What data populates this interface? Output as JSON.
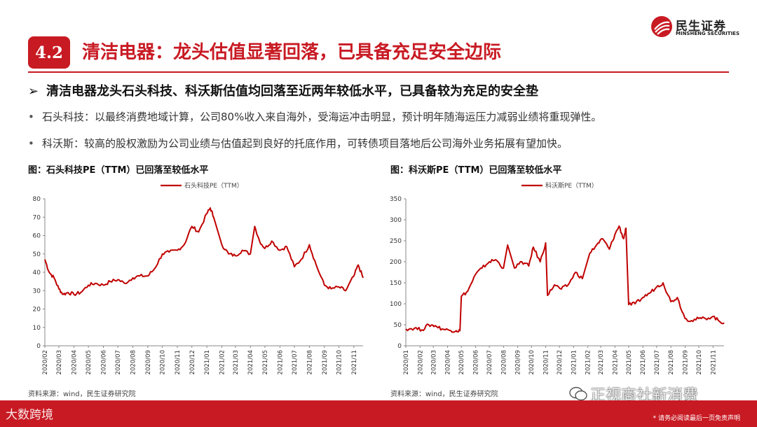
{
  "brand": {
    "name_cn": "民生证券",
    "name_en": "MINSHENG SECURITIES",
    "color": "#c81a23"
  },
  "section": {
    "number": "4.2",
    "title": "清洁电器：龙头估值显著回落，已具备充足安全边际"
  },
  "key_point": {
    "icon": "arrow-bullet-icon",
    "text": "清洁电器龙头石头科技、科沃斯估值均回落至近两年较低水平，已具备较为充足的安全垫"
  },
  "bullets": [
    "石头科技：以最终消费地域计算，公司80%收入来自海外，受海运冲击明显，预计明年随海运压力减弱业绩将重现弹性。",
    "科沃斯：较高的股权激励为公司业绩与估值起到良好的托底作用，可转债项目落地后公司海外业务拓展有望加快。"
  ],
  "figures": [
    {
      "caption": "图：石头科技PE（TTM）已回落至较低水平",
      "source": "资料来源：wind，民生证券研究院"
    },
    {
      "caption": "图：科沃斯PE（TTM）已回落至较低水平",
      "source": "资料来源：wind，民生证券研究院"
    }
  ],
  "chart_data": [
    {
      "type": "line",
      "title": "",
      "xlabel": "",
      "ylabel": "",
      "ylim": [
        0,
        80
      ],
      "yticks": [
        0,
        10,
        20,
        30,
        40,
        50,
        60,
        70,
        80
      ],
      "grid": false,
      "legend_position": "top-center",
      "x_tick_labels": [
        "2020/02",
        "2020/03",
        "2020/04",
        "2020/05",
        "2020/06",
        "2020/07",
        "2020/08",
        "2020/09",
        "2020/10",
        "2020/11",
        "2020/12",
        "2021/01",
        "2021/02",
        "2021/03",
        "2021/04",
        "2021/05",
        "2021/06",
        "2021/07",
        "2021/08",
        "2021/09",
        "2021/10",
        "2021/11"
      ],
      "series": [
        {
          "name": "石头科技PE（TTM）",
          "color": "#c00000",
          "x": [
            "2020-02-01",
            "2020-02-10",
            "2020-02-20",
            "2020-03-01",
            "2020-03-10",
            "2020-03-20",
            "2020-04-01",
            "2020-04-15",
            "2020-05-01",
            "2020-05-15",
            "2020-06-01",
            "2020-06-15",
            "2020-07-01",
            "2020-07-15",
            "2020-08-01",
            "2020-08-15",
            "2020-09-01",
            "2020-09-15",
            "2020-10-01",
            "2020-10-15",
            "2020-11-01",
            "2020-11-15",
            "2020-12-01",
            "2020-12-15",
            "2021-01-01",
            "2021-01-08",
            "2021-01-15",
            "2021-02-01",
            "2021-02-15",
            "2021-03-01",
            "2021-03-15",
            "2021-04-01",
            "2021-04-10",
            "2021-04-20",
            "2021-05-01",
            "2021-05-15",
            "2021-06-01",
            "2021-06-15",
            "2021-07-01",
            "2021-07-15",
            "2021-08-01",
            "2021-08-15",
            "2021-09-01",
            "2021-09-15",
            "2021-10-01",
            "2021-10-15",
            "2021-11-01",
            "2021-11-10",
            "2021-11-20"
          ],
          "y": [
            47,
            40,
            37,
            31,
            28,
            29,
            28,
            29,
            33,
            34,
            33,
            35,
            36,
            34,
            37,
            38,
            38,
            42,
            50,
            51,
            52,
            55,
            65,
            62,
            72,
            75,
            70,
            55,
            50,
            49,
            52,
            50,
            65,
            57,
            53,
            57,
            52,
            54,
            43,
            47,
            55,
            44,
            33,
            31,
            32,
            30,
            38,
            44,
            37
          ]
        }
      ]
    },
    {
      "type": "line",
      "title": "",
      "xlabel": "",
      "ylabel": "",
      "ylim": [
        0,
        350
      ],
      "yticks": [
        0,
        50,
        100,
        150,
        200,
        250,
        300,
        350
      ],
      "grid": false,
      "legend_position": "top-center",
      "x_tick_labels": [
        "2020/01",
        "2020/02",
        "2020/03",
        "2020/04",
        "2020/05",
        "2020/06",
        "2020/07",
        "2020/08",
        "2020/09",
        "2020/10",
        "2020/11",
        "2020/12",
        "2021/01",
        "2021/02",
        "2021/03",
        "2021/04",
        "2021/05",
        "2021/06",
        "2021/07",
        "2021/08",
        "2021/09",
        "2021/10",
        "2021/11"
      ],
      "series": [
        {
          "name": "科沃斯PE（TTM）",
          "color": "#c00000",
          "x": [
            "2020-01-01",
            "2020-01-20",
            "2020-02-05",
            "2020-02-20",
            "2020-03-05",
            "2020-03-20",
            "2020-04-05",
            "2020-04-20",
            "2020-04-28",
            "2020-05-01",
            "2020-05-15",
            "2020-06-01",
            "2020-06-15",
            "2020-07-01",
            "2020-07-15",
            "2020-08-01",
            "2020-08-10",
            "2020-08-25",
            "2020-09-10",
            "2020-09-25",
            "2020-10-05",
            "2020-10-20",
            "2020-11-01",
            "2020-11-05",
            "2020-11-20",
            "2020-12-05",
            "2020-12-20",
            "2021-01-05",
            "2021-01-20",
            "2021-02-05",
            "2021-02-20",
            "2021-03-05",
            "2021-03-20",
            "2021-04-01",
            "2021-04-10",
            "2021-04-20",
            "2021-04-25",
            "2021-05-01",
            "2021-05-15",
            "2021-06-01",
            "2021-06-15",
            "2021-07-01",
            "2021-07-15",
            "2021-08-01",
            "2021-08-15",
            "2021-09-01",
            "2021-09-15",
            "2021-10-01",
            "2021-10-15",
            "2021-11-01",
            "2021-11-15",
            "2021-11-25"
          ],
          "y": [
            40,
            42,
            38,
            50,
            48,
            40,
            37,
            36,
            36,
            118,
            130,
            170,
            185,
            200,
            205,
            185,
            240,
            185,
            200,
            190,
            235,
            200,
            245,
            120,
            145,
            135,
            145,
            175,
            160,
            220,
            240,
            255,
            230,
            265,
            285,
            255,
            280,
            98,
            100,
            115,
            125,
            140,
            150,
            105,
            115,
            65,
            60,
            65,
            65,
            70,
            58,
            55
          ]
        }
      ]
    }
  ],
  "watermark": "正视商社新消费",
  "footer": {
    "mark": "大数跨境",
    "note": "* 请务必阅读最后一页免责声明"
  }
}
